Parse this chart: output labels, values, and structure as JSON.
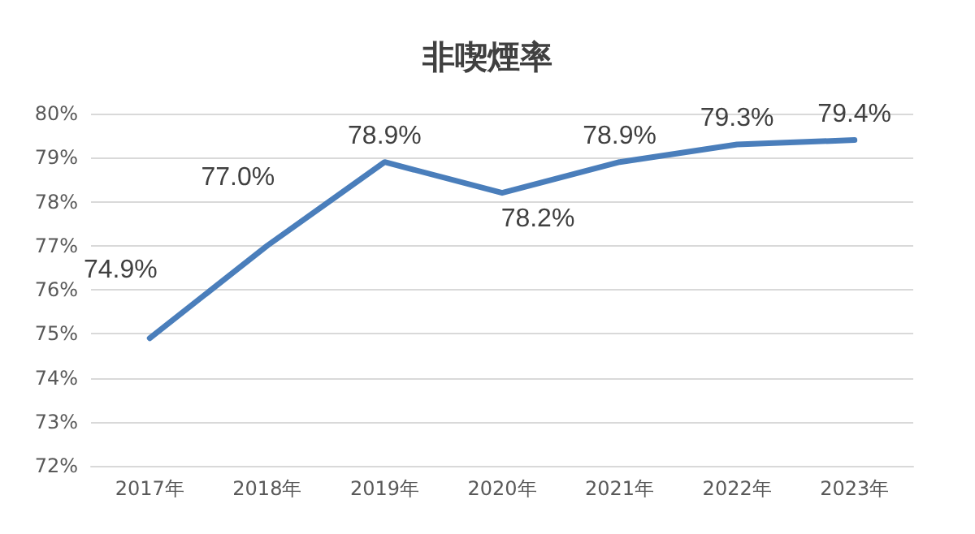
{
  "chart_data": {
    "type": "line",
    "title": "非喫煙率",
    "categories": [
      "2017年",
      "2018年",
      "2019年",
      "2020年",
      "2021年",
      "2022年",
      "2023年"
    ],
    "values": [
      74.9,
      77.0,
      78.9,
      78.2,
      78.9,
      79.3,
      79.4
    ],
    "value_labels": [
      "74.9%",
      "77.0%",
      "78.9%",
      "78.2%",
      "78.9%",
      "79.3%",
      "79.4%"
    ],
    "color": "#4a7ebb",
    "ylim": [
      72,
      80
    ],
    "yticks": [
      {
        "value": 72,
        "label": "72%"
      },
      {
        "value": 73,
        "label": "73%"
      },
      {
        "value": 74,
        "label": "74%"
      },
      {
        "value": 75,
        "label": "75%"
      },
      {
        "value": 76,
        "label": "76%"
      },
      {
        "value": 77,
        "label": "77%"
      },
      {
        "value": 78,
        "label": "78%"
      },
      {
        "value": 79,
        "label": "79%"
      },
      {
        "value": 80,
        "label": "80%"
      }
    ],
    "grid": "y",
    "marker": "none",
    "line_style": "solid"
  }
}
